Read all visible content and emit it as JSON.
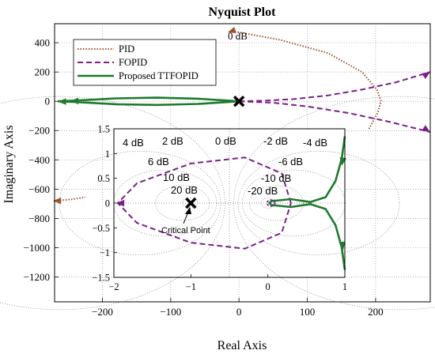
{
  "chart_data": [
    {
      "type": "line",
      "title": "Nyquist Plot",
      "xlabel": "Real Axis",
      "ylabel": "Imaginary Axis",
      "xlim": [
        -270,
        280
      ],
      "ylim": [
        -1370,
        530
      ],
      "xticks": [
        -200,
        -100,
        0,
        100,
        200
      ],
      "yticks": [
        400,
        200,
        0,
        -200,
        -400,
        -600,
        -800,
        -1000,
        -1200
      ],
      "grid": "dotted",
      "legend": "top-left",
      "annotations": [
        {
          "text": "0 dB",
          "x": 0,
          "y": 420
        }
      ],
      "series": [
        {
          "name": "PID",
          "color": "#a0522d",
          "style": "dotted",
          "points": [
            [
              -10,
              480
            ],
            [
              60,
              420
            ],
            [
              130,
              330
            ],
            [
              180,
              200
            ],
            [
              202,
              80
            ],
            [
              208,
              0
            ],
            [
              203,
              -80
            ],
            [
              190,
              -190
            ]
          ],
          "points2": [
            [
              -270,
              -680
            ],
            [
              -245,
              -670
            ],
            [
              -225,
              -655
            ]
          ]
        },
        {
          "name": "FOPID",
          "color": "#7b1f8a",
          "style": "dashed",
          "points": [
            [
              0,
              0
            ],
            [
              40,
              5
            ],
            [
              80,
              15
            ],
            [
              130,
              40
            ],
            [
              180,
              80
            ],
            [
              230,
              130
            ],
            [
              280,
              200
            ]
          ],
          "points2": [
            [
              0,
              0
            ],
            [
              50,
              -10
            ],
            [
              100,
              -35
            ],
            [
              160,
              -80
            ],
            [
              220,
              -140
            ],
            [
              280,
              -210
            ]
          ]
        },
        {
          "name": "Proposed TTFOPID",
          "color": "#1e7a2e",
          "style": "solid",
          "points": [
            [
              -265,
              0
            ],
            [
              -240,
              5
            ],
            [
              -180,
              20
            ],
            [
              -120,
              25
            ],
            [
              -60,
              18
            ],
            [
              0,
              0
            ],
            [
              -60,
              -18
            ],
            [
              -120,
              -25
            ],
            [
              -180,
              -20
            ],
            [
              -240,
              -5
            ],
            [
              -265,
              0
            ]
          ]
        }
      ]
    },
    {
      "type": "line",
      "xlim": [
        -2,
        1
      ],
      "ylim": [
        -1.5,
        1.5
      ],
      "xticks": [
        -2,
        -1,
        0,
        1
      ],
      "yticks": [
        1.5,
        1,
        0.5,
        0,
        -0.5,
        -1,
        -1.5
      ],
      "grid": "dotted",
      "db_labels": [
        "4 dB",
        "2 dB",
        "0 dB",
        "-2 dB",
        "-4 dB",
        "6 dB",
        "-6 dB",
        "10 dB",
        "-10 dB",
        "20 dB",
        "-20 dB"
      ],
      "annotations": [
        {
          "text": "Critical Point",
          "x": -1,
          "y": 0
        }
      ],
      "series": [
        {
          "name": "FOPID",
          "color": "#7b1f8a",
          "style": "dashed",
          "points": [
            [
              0.3,
              0
            ],
            [
              0.18,
              0.6
            ],
            [
              -0.3,
              0.92
            ],
            [
              -1.0,
              0.8
            ],
            [
              -1.7,
              0.4
            ],
            [
              -1.95,
              0
            ],
            [
              -1.7,
              -0.4
            ],
            [
              -1.0,
              -0.8
            ],
            [
              -0.3,
              -0.92
            ],
            [
              0.18,
              -0.6
            ],
            [
              0.3,
              0
            ]
          ]
        },
        {
          "name": "Proposed TTFOPID",
          "color": "#1e7a2e",
          "style": "solid",
          "points": [
            [
              1.0,
              1.35
            ],
            [
              0.96,
              0.9
            ],
            [
              0.88,
              0.45
            ],
            [
              0.75,
              0.12
            ],
            [
              0.55,
              0.02
            ],
            [
              0.3,
              0.08
            ],
            [
              0.05,
              0.04
            ],
            [
              0.02,
              0
            ],
            [
              0.05,
              -0.04
            ],
            [
              0.3,
              -0.08
            ],
            [
              0.55,
              -0.02
            ],
            [
              0.75,
              -0.12
            ],
            [
              0.88,
              -0.45
            ],
            [
              0.96,
              -0.9
            ],
            [
              1.0,
              -1.35
            ]
          ]
        }
      ]
    }
  ]
}
